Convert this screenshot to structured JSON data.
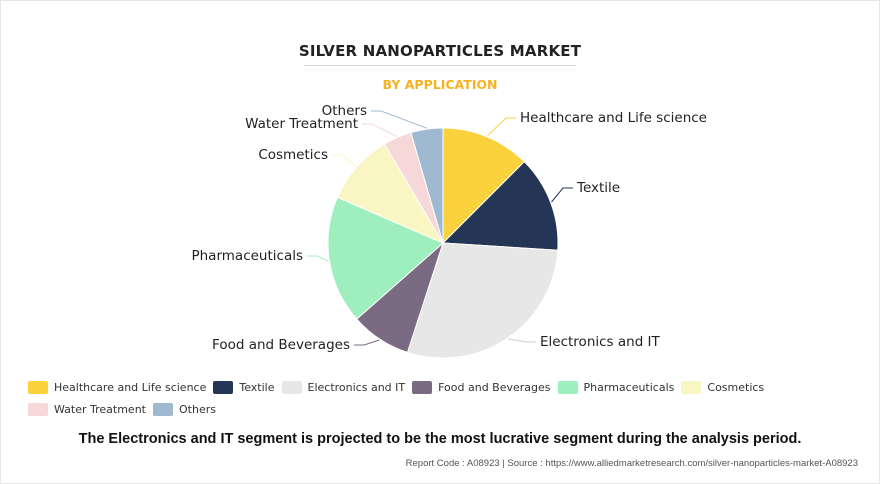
{
  "header": {
    "title": "SILVER NANOPARTICLES MARKET",
    "subtitle": "BY APPLICATION"
  },
  "chart_data": {
    "type": "pie",
    "title": "SILVER NANOPARTICLES MARKET",
    "subtitle": "BY APPLICATION",
    "legend_position": "bottom",
    "series": [
      {
        "name": "Healthcare and Life science",
        "value": 12.5,
        "color": "#fcd23c"
      },
      {
        "name": "Textile",
        "value": 13.5,
        "color": "#253556"
      },
      {
        "name": "Electronics and IT",
        "value": 29.0,
        "color": "#e7e7e7"
      },
      {
        "name": "Food and Beverages",
        "value": 8.5,
        "color": "#7a6b83"
      },
      {
        "name": "Pharmaceuticals",
        "value": 18.0,
        "color": "#9feebd"
      },
      {
        "name": "Cosmetics",
        "value": 10.0,
        "color": "#faf6c3"
      },
      {
        "name": "Water Treatment",
        "value": 4.0,
        "color": "#f6d8d8"
      },
      {
        "name": "Others",
        "value": 4.5,
        "color": "#9fb9d1"
      }
    ]
  },
  "footer": {
    "statement": "The Electronics and IT segment is projected to be the most lucrative segment during the analysis period.",
    "source": "Report Code : A08923  |  Source : https://www.alliedmarketresearch.com/silver-nanoparticles-market-A08923"
  }
}
